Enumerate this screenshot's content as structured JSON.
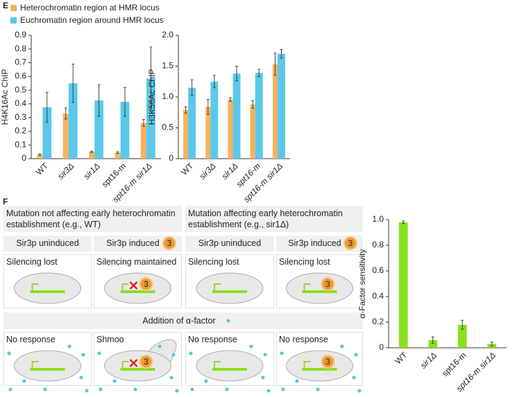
{
  "panel_label_e": "E",
  "chart_data": [
    {
      "type": "bar",
      "ylabel": "H4K16Ac ChIP",
      "categories": [
        "WT",
        "sir3Δ",
        "sir1Δ",
        "spt16-m",
        "spt16-m sir1Δ"
      ],
      "category_italic": [
        false,
        true,
        true,
        false,
        true
      ],
      "series": [
        {
          "name": "Heterochromatin region at HMR locus",
          "color": "#f7b35c",
          "values": [
            0.03,
            0.33,
            0.05,
            0.045,
            0.26
          ],
          "errors": [
            0.005,
            0.04,
            0.005,
            0.006,
            0.025
          ]
        },
        {
          "name": "Euchromatin region around HMR locus",
          "color": "#5bc8ea",
          "values": [
            0.375,
            0.55,
            0.425,
            0.415,
            0.585
          ],
          "errors": [
            0.11,
            0.14,
            0.115,
            0.105,
            0.23
          ]
        }
      ],
      "ylim": [
        0,
        0.9
      ],
      "yticks": [
        0,
        0.1,
        0.2,
        0.3,
        0.4,
        0.5,
        0.6,
        0.7,
        0.8,
        0.9
      ]
    },
    {
      "type": "bar",
      "ylabel": "H3K56Ac ChIP",
      "categories": [
        "WT",
        "sir3Δ",
        "sir1Δ",
        "spt16-m",
        "spt16-m sir1Δ"
      ],
      "category_italic": [
        false,
        true,
        true,
        true,
        true
      ],
      "series": [
        {
          "color": "#f7b35c",
          "values": [
            0.79,
            0.84,
            0.96,
            0.88,
            1.53
          ],
          "errors": [
            0.05,
            0.12,
            0.03,
            0.06,
            0.18
          ]
        },
        {
          "color": "#5bc8ea",
          "values": [
            1.15,
            1.25,
            1.38,
            1.39,
            1.7
          ],
          "errors": [
            0.13,
            0.1,
            0.12,
            0.06,
            0.07
          ]
        }
      ],
      "ylim": [
        0,
        2
      ],
      "yticks": [
        0,
        0.5,
        {
          "value": 1,
          "label": "1.0"
        },
        1.5,
        {
          "value": 2,
          "label": "2.0"
        }
      ]
    },
    {
      "type": "bar",
      "ylabel": "α-Factor sensitivity",
      "categories": [
        "WT",
        "sir1Δ",
        "spt16-m",
        "spt16-m sir1Δ"
      ],
      "category_italic": [
        false,
        true,
        false,
        true
      ],
      "series": [
        {
          "color": "#8be01e",
          "values": [
            0.98,
            0.06,
            0.18,
            0.03
          ],
          "errors": [
            0.01,
            0.025,
            0.035,
            0.015
          ]
        }
      ],
      "ylim": [
        0,
        1
      ],
      "yticks": [
        0,
        0.2,
        0.4,
        0.6,
        0.8,
        {
          "value": 1,
          "label": "1.0"
        }
      ]
    }
  ],
  "diagram": {
    "panel_label": "F",
    "groups": [
      "Mutation not affecting early heterochromatin establishment (e.g., WT)",
      "Mutation affecting early heterochromatin establishment (e.g., sir1Δ)"
    ],
    "conditions": [
      "Sir3p uninduced",
      "Sir3p induced",
      "Sir3p uninduced",
      "Sir3p induced"
    ],
    "sir3_badge": "3",
    "silencing": [
      "Silencing lost",
      "Silencing maintained",
      "Silencing lost",
      "Silencing lost"
    ],
    "alpha_factor": "Addition of α-factor",
    "responses": [
      "No response",
      "Shmoo",
      "No response",
      "No response"
    ]
  }
}
